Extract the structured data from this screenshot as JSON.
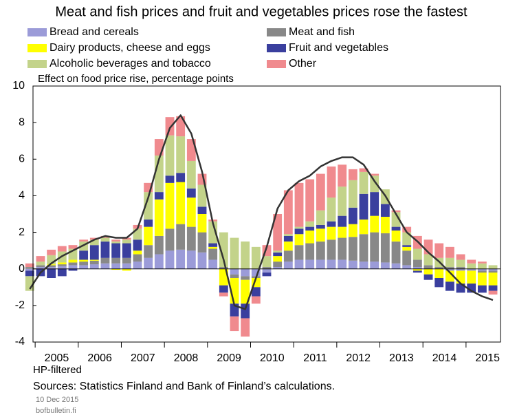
{
  "chart_data": {
    "type": "bar",
    "stacked": true,
    "title": "Meat and fish prices and fruit and vegetables prices rose the fastest",
    "y_label": "Effect on food price rise, percentage points",
    "x_note": "HP-filtered",
    "source": "Sources: Statistics Finland and Bank of Finland’s calculations.",
    "date": "10 Dec 2015",
    "site": "bofbulletin.fi",
    "x": [
      2004.875,
      2005.125,
      2005.375,
      2005.625,
      2005.875,
      2006.125,
      2006.375,
      2006.625,
      2006.875,
      2007.125,
      2007.375,
      2007.625,
      2007.875,
      2008.125,
      2008.375,
      2008.625,
      2008.875,
      2009.125,
      2009.375,
      2009.625,
      2009.875,
      2010.125,
      2010.375,
      2010.625,
      2010.875,
      2011.125,
      2011.375,
      2011.625,
      2011.875,
      2012.125,
      2012.375,
      2012.625,
      2012.875,
      2013.125,
      2013.375,
      2013.625,
      2013.875,
      2014.125,
      2014.375,
      2014.625,
      2014.875,
      2015.125,
      2015.375,
      2015.625
    ],
    "xlim": [
      2004.95,
      2015.8
    ],
    "xticks": [
      2005,
      2006,
      2007,
      2008,
      2009,
      2010,
      2011,
      2012,
      2013,
      2014,
      2015
    ],
    "ylim": [
      -4,
      10
    ],
    "yticks": [
      -4,
      -2,
      0,
      2,
      4,
      6,
      8,
      10
    ],
    "series": [
      {
        "name": "Bread and cereals",
        "color": "#9b9bd8",
        "values": [
          -0.1,
          0.1,
          0.1,
          0.15,
          0.2,
          0.2,
          0.25,
          0.3,
          0.3,
          0.3,
          0.4,
          0.6,
          0.8,
          1.0,
          1.05,
          1.0,
          0.9,
          0.5,
          0,
          -0.3,
          -0.4,
          -0.4,
          -0.2,
          0.1,
          0.4,
          0.5,
          0.5,
          0.5,
          0.5,
          0.5,
          0.45,
          0.4,
          0.4,
          0.35,
          0.3,
          0.2,
          0.1,
          0,
          0,
          -0.1,
          -0.1,
          -0.1,
          -0.1,
          -0.1
        ]
      },
      {
        "name": "Meat and fish",
        "color": "#888888",
        "values": [
          0.1,
          0.1,
          0.1,
          0.1,
          0.15,
          0.2,
          0.2,
          0.3,
          0.3,
          0.3,
          0.4,
          0.7,
          1.0,
          1.2,
          1.4,
          1.3,
          1.1,
          0.6,
          0.1,
          -0.2,
          -0.2,
          -0.1,
          0.1,
          0.3,
          0.6,
          0.8,
          0.9,
          1.0,
          1.1,
          1.2,
          1.3,
          1.5,
          1.6,
          1.6,
          1.2,
          0.8,
          0.4,
          0.2,
          0.1,
          0.1,
          0.1,
          0,
          -0.1,
          -0.1
        ]
      },
      {
        "name": "Dairy products, cheese and eggs",
        "color": "#ffff00",
        "values": [
          0,
          0,
          0.05,
          0.1,
          0.15,
          0.1,
          0.05,
          0,
          -0.05,
          -0.1,
          0.2,
          1.0,
          2.0,
          2.5,
          2.3,
          1.6,
          1.0,
          0.1,
          -0.9,
          -1.4,
          -1.3,
          -0.5,
          0,
          0.3,
          0.5,
          0.6,
          0.7,
          0.7,
          0.7,
          0.6,
          0.7,
          0.8,
          0.9,
          0.9,
          0.6,
          0.2,
          -0.1,
          -0.3,
          -0.5,
          -0.6,
          -0.7,
          -0.7,
          -0.7,
          -0.7
        ]
      },
      {
        "name": "Fruit and vegetables",
        "color": "#3a3f9e",
        "values": [
          -0.3,
          -0.4,
          -0.5,
          -0.4,
          -0.1,
          0.5,
          0.8,
          0.9,
          0.8,
          0.8,
          0.6,
          0.4,
          0.4,
          0.4,
          0.5,
          0.5,
          0.4,
          0.2,
          -0.4,
          -0.7,
          -0.8,
          -0.5,
          -0.2,
          0.2,
          0.3,
          0.3,
          0.2,
          0.2,
          0.3,
          0.6,
          0.9,
          1.4,
          1.3,
          0.7,
          0.2,
          0.1,
          -0.1,
          -0.3,
          -0.5,
          -0.5,
          -0.5,
          -0.5,
          -0.4,
          -0.3
        ]
      },
      {
        "name": "Alcoholic beverages and tobacco",
        "color": "#c3d38a",
        "values": [
          -0.8,
          0.2,
          0.5,
          0.6,
          0.6,
          0.5,
          0.3,
          0.2,
          0.1,
          0.2,
          0.6,
          1.5,
          2.0,
          2.2,
          2.0,
          1.5,
          1.2,
          1.2,
          1.9,
          1.7,
          1.5,
          1.2,
          0.6,
          0.1,
          0.1,
          0.1,
          0.3,
          0.8,
          1.3,
          1.6,
          1.5,
          1.2,
          0.9,
          0.8,
          0.8,
          0.7,
          0.6,
          0.6,
          0.5,
          0.5,
          0.4,
          0.3,
          0.3,
          0.2
        ]
      },
      {
        "name": "Other",
        "color": "#f08a8e",
        "values": [
          0.2,
          0.3,
          0.3,
          0.3,
          0.2,
          0.1,
          0.1,
          0.1,
          0.1,
          0.1,
          0.2,
          0.5,
          0.9,
          1.0,
          1.1,
          1.2,
          0.6,
          0.1,
          -0.2,
          -0.8,
          -1.0,
          -0.4,
          0.6,
          2.0,
          2.4,
          2.4,
          2.3,
          2.0,
          1.7,
          1.2,
          0.6,
          0.2,
          0.1,
          0,
          0.1,
          0.3,
          0.7,
          0.8,
          0.8,
          0.6,
          0.3,
          0.2,
          0.1,
          -0.2
        ]
      },
      {
        "type": "line",
        "color": "#333333",
        "values": [
          -1.1,
          -0.2,
          0.3,
          0.7,
          1.0,
          1.3,
          1.6,
          1.8,
          1.7,
          1.7,
          2.2,
          3.9,
          6.0,
          7.7,
          8.4,
          7.4,
          5.3,
          2.5,
          0.5,
          -2.0,
          -2.2,
          -0.5,
          1.2,
          3.3,
          4.3,
          4.8,
          5.1,
          5.6,
          5.9,
          6.1,
          6.1,
          5.7,
          4.8,
          4.0,
          3.0,
          2.0,
          1.5,
          0.9,
          0.4,
          -0.2,
          -0.8,
          -1.2,
          -1.5,
          -1.7
        ]
      }
    ]
  }
}
